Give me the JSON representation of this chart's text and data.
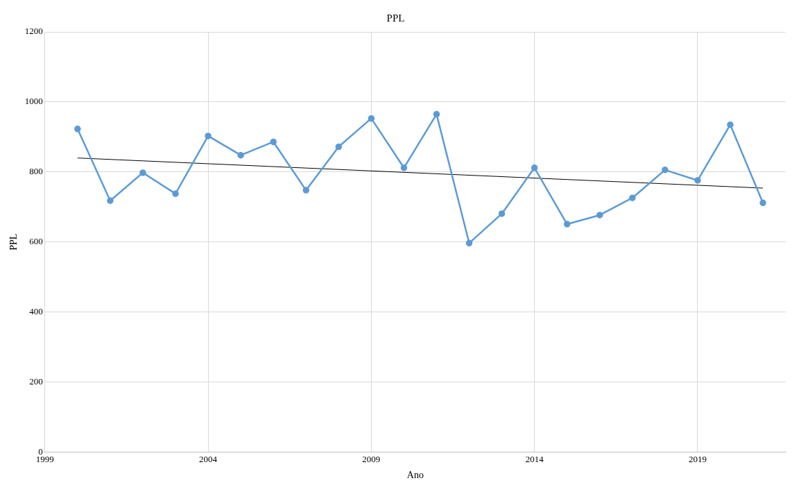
{
  "chart_data": {
    "type": "line",
    "title": "PPL",
    "xlabel": "Ano",
    "ylabel": "PPL",
    "xlim": [
      1999,
      2021.7
    ],
    "xticks": [
      1999,
      2004,
      2009,
      2014,
      2019
    ],
    "ylim": [
      0,
      1200
    ],
    "yticks": [
      0,
      200,
      400,
      600,
      800,
      1000,
      1200
    ],
    "grid": true,
    "legend": false,
    "marker": "circle",
    "series": [
      {
        "type": "line",
        "color": "#5b9bd5",
        "x": [
          2000,
          2001,
          2002,
          2003,
          2004,
          2005,
          2006,
          2007,
          2008,
          2009,
          2010,
          2011,
          2012,
          2013,
          2014,
          2015,
          2016,
          2017,
          2018,
          2019,
          2020,
          2021
        ],
        "values": [
          923,
          718,
          798,
          738,
          903,
          848,
          886,
          748,
          872,
          953,
          812,
          965,
          597,
          681,
          812,
          651,
          677,
          726,
          806,
          776,
          935,
          712
        ]
      },
      {
        "type": "line",
        "color": "#000000",
        "marker": "none",
        "x": [
          2000,
          2021
        ],
        "values": [
          840,
          754
        ]
      }
    ]
  }
}
